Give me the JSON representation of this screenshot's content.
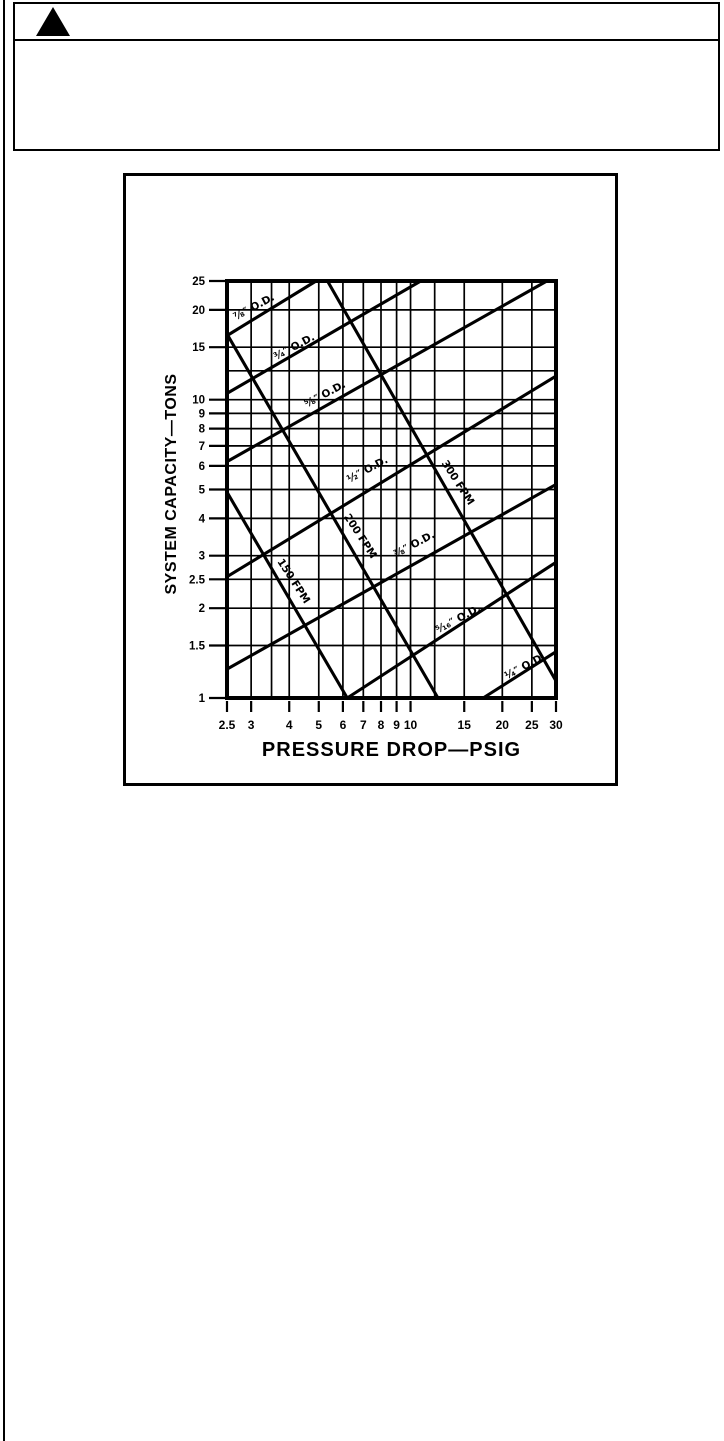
{
  "page": {
    "background": "#ffffff",
    "ink_color": "#000000"
  },
  "warning_banner": {
    "icon": "warning-triangle",
    "header_text": "",
    "body_text": ""
  },
  "chart_data": {
    "type": "line",
    "title": "",
    "xlabel": "PRESSURE DROP—PSIG",
    "ylabel": "SYSTEM CAPACITY—TONS",
    "x_scale": "log",
    "y_scale": "log",
    "xlim": [
      2.5,
      30
    ],
    "ylim": [
      1,
      25
    ],
    "grid": true,
    "legend": "none",
    "x_ticks": [
      {
        "value": 2.5,
        "label": "2.5"
      },
      {
        "value": 3,
        "label": "3"
      },
      {
        "value": 4,
        "label": "4"
      },
      {
        "value": 5,
        "label": "5"
      },
      {
        "value": 6,
        "label": "6"
      },
      {
        "value": 7,
        "label": "7"
      },
      {
        "value": 8,
        "label": "8"
      },
      {
        "value": 9,
        "label": "9"
      },
      {
        "value": 10,
        "label": "10"
      },
      {
        "value": 15,
        "label": "15"
      },
      {
        "value": 20,
        "label": "20"
      },
      {
        "value": 25,
        "label": "25"
      },
      {
        "value": 30,
        "label": "30"
      }
    ],
    "y_ticks": [
      {
        "value": 25,
        "label": "25"
      },
      {
        "value": 20,
        "label": "20"
      },
      {
        "value": 15,
        "label": "15"
      },
      {
        "value": 10,
        "label": "10"
      },
      {
        "value": 9,
        "label": "9"
      },
      {
        "value": 8,
        "label": "8"
      },
      {
        "value": 7,
        "label": "7"
      },
      {
        "value": 6,
        "label": "6"
      },
      {
        "value": 5,
        "label": "5"
      },
      {
        "value": 4,
        "label": "4"
      },
      {
        "value": 3,
        "label": "3"
      },
      {
        "value": 2.5,
        "label": "2.5"
      },
      {
        "value": 2,
        "label": "2"
      },
      {
        "value": 1.5,
        "label": "1.5"
      },
      {
        "value": 1,
        "label": "1"
      }
    ],
    "x_gridlines_unlabeled": [
      3.5,
      12
    ],
    "y_gridlines_unlabeled": [
      12.5
    ],
    "series": [
      {
        "name": "od-7-8",
        "group": "tube-od",
        "label": "⁷⁄₈″ O.D.",
        "points": [
          [
            2.5,
            16.4
          ],
          [
            4.9,
            25
          ]
        ],
        "label_anchor": [
          3.1,
          20.0
        ],
        "label_rotation": -28
      },
      {
        "name": "od-3-4",
        "group": "tube-od",
        "label": "³⁄₄″ O.D.",
        "points": [
          [
            2.5,
            10.5
          ],
          [
            10.8,
            25
          ]
        ],
        "label_anchor": [
          4.2,
          14.7
        ],
        "label_rotation": -28
      },
      {
        "name": "od-5-8",
        "group": "tube-od",
        "label": "⁵⁄₈″ O.D.",
        "points": [
          [
            2.5,
            6.2
          ],
          [
            28,
            25
          ]
        ],
        "label_anchor": [
          5.3,
          10.2
        ],
        "label_rotation": -28
      },
      {
        "name": "od-1-2",
        "group": "tube-od",
        "label": "¹⁄₂″ O.D.",
        "points": [
          [
            2.5,
            2.55
          ],
          [
            30,
            12
          ]
        ],
        "label_anchor": [
          7.3,
          5.7
        ],
        "label_rotation": -28
      },
      {
        "name": "od-3-8",
        "group": "tube-od",
        "label": "³⁄₈″ O.D.",
        "points": [
          [
            2.5,
            1.25
          ],
          [
            30,
            5.2
          ]
        ],
        "label_anchor": [
          10.4,
          3.2
        ],
        "label_rotation": -28
      },
      {
        "name": "od-5-16",
        "group": "tube-od",
        "label": "⁵⁄₁₆″ O.D.",
        "points": [
          [
            6.2,
            1
          ],
          [
            30,
            2.85
          ]
        ],
        "label_anchor": [
          14.5,
          1.8
        ],
        "label_rotation": -28
      },
      {
        "name": "od-1-4",
        "group": "tube-od",
        "label": "¹⁄₄″ O.D.",
        "points": [
          [
            17.3,
            1
          ],
          [
            30,
            1.43
          ]
        ],
        "label_anchor": [
          24.0,
          1.25
        ],
        "label_rotation": -28
      },
      {
        "name": "fpm-150",
        "group": "velocity",
        "label": "150 FPM",
        "points": [
          [
            2.5,
            4.9
          ],
          [
            6.2,
            1
          ]
        ],
        "label_anchor": [
          4.05,
          2.43
        ],
        "label_rotation": 57
      },
      {
        "name": "fpm-200",
        "group": "velocity",
        "label": "200 FPM",
        "points": [
          [
            2.5,
            16.6
          ],
          [
            12.3,
            1
          ]
        ],
        "label_anchor": [
          6.7,
          3.44
        ],
        "label_rotation": 57
      },
      {
        "name": "fpm-300",
        "group": "velocity",
        "label": "300 FPM",
        "points": [
          [
            5.34,
            25
          ],
          [
            30,
            1.14
          ]
        ],
        "label_anchor": [
          14.0,
          5.2
        ],
        "label_rotation": 57
      }
    ]
  }
}
